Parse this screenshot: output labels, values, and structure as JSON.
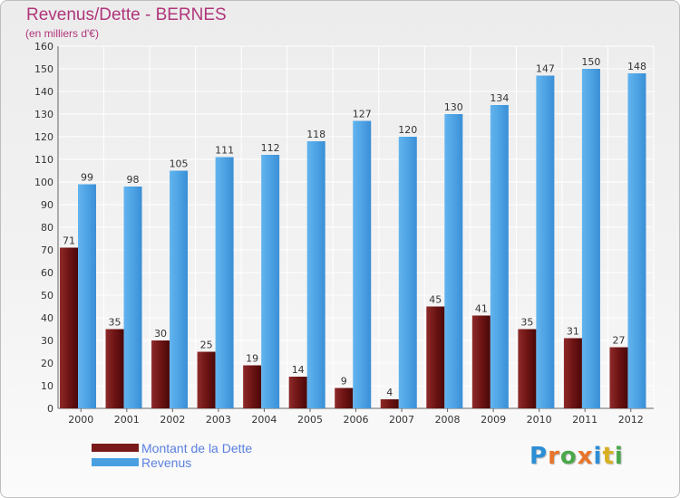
{
  "chart_data": {
    "type": "bar",
    "title": "Revenus/Dette - BERNES",
    "subtitle": "(en milliers d'€)",
    "categories": [
      "2000",
      "2001",
      "2002",
      "2003",
      "2004",
      "2005",
      "2006",
      "2007",
      "2008",
      "2009",
      "2010",
      "2011",
      "2012"
    ],
    "series": [
      {
        "name": "Montant de la Dette",
        "color": "#7a1a1a",
        "values": [
          71,
          35,
          30,
          25,
          19,
          14,
          9,
          4,
          45,
          41,
          35,
          31,
          27
        ]
      },
      {
        "name": "Revenus",
        "color": "#4a9fe0",
        "values": [
          99,
          98,
          105,
          111,
          112,
          118,
          127,
          120,
          130,
          134,
          147,
          150,
          148
        ]
      }
    ],
    "ylim": [
      0,
      160
    ],
    "ytick_step": 10,
    "grid": true,
    "legend_position": "bottom-left",
    "data_labels": true
  },
  "branding": {
    "logo_text": "Proxiti",
    "logo_colors": [
      "#2b8ed6",
      "#e8742a",
      "#4aa84a",
      "#e8742a",
      "#2b8ed6",
      "#d8b020",
      "#4aa84a"
    ]
  }
}
